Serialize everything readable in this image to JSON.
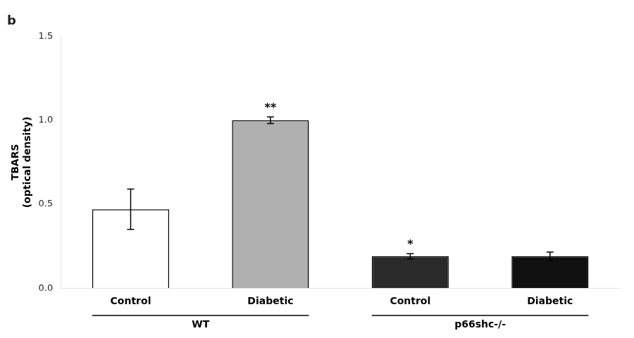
{
  "chart_data": {
    "type": "bar",
    "title": "b",
    "ylabel": "TBARS\n(optical density)",
    "categories": [
      "Control",
      "Diabetic",
      "Control",
      "Diabetic"
    ],
    "category_groups": [
      "WT",
      "WT",
      "p66shc-/-",
      "p66shc-/-"
    ],
    "values": [
      0.47,
      1.0,
      0.19,
      0.19
    ],
    "errors": [
      0.12,
      0.02,
      0.015,
      0.025
    ],
    "colors": [
      "#ffffff",
      "#b0b0b0",
      "#2a2a2a",
      "#111111"
    ],
    "annotations": [
      null,
      "**",
      "*",
      null
    ],
    "ylim": [
      0.0,
      1.5
    ],
    "yticks": [
      {
        "value": 0,
        "label": "0.0"
      },
      0.5,
      {
        "value": 1,
        "label": "1.0"
      },
      1.5
    ],
    "grid": false
  }
}
